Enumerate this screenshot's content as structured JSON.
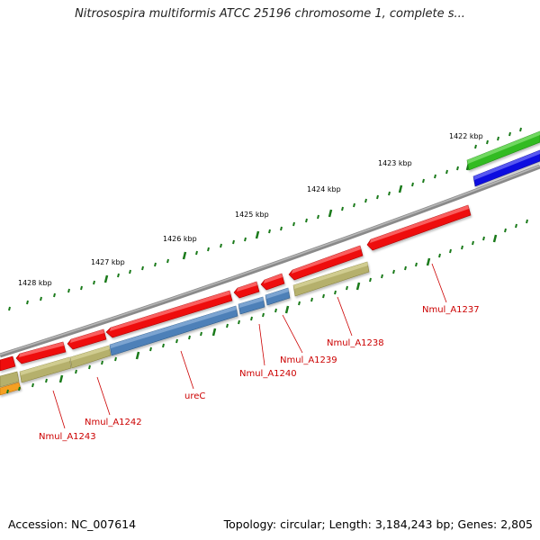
{
  "title": "Nitrosospira multiformis ATCC 25196 chromosome 1, complete s...",
  "footer": {
    "accession": "Accession: NC_007614",
    "summary": "Topology: circular; Length: 3,184,243 bp; Genes: 2,805"
  },
  "colors": {
    "forward_gene": "#ee1111",
    "other_gene": "#b5b06c",
    "rrna_blue": "#4d80b8",
    "orange_gene": "#f5a020",
    "green_track": "#33bb22",
    "blue_track": "#1010e0",
    "backbone": "#7a7a7a",
    "tick": "#1a7a1a",
    "label": "#cc0000"
  },
  "kbp_labels": [
    "1422 kbp",
    "1423 kbp",
    "1424 kbp",
    "1425 kbp",
    "1426 kbp",
    "1427 kbp",
    "1428 kbp"
  ],
  "gene_labels": [
    "Nmul_A1237",
    "Nmul_A1238",
    "Nmul_A1239",
    "Nmul_A1240",
    "ureC",
    "Nmul_A1242",
    "Nmul_A1243"
  ]
}
